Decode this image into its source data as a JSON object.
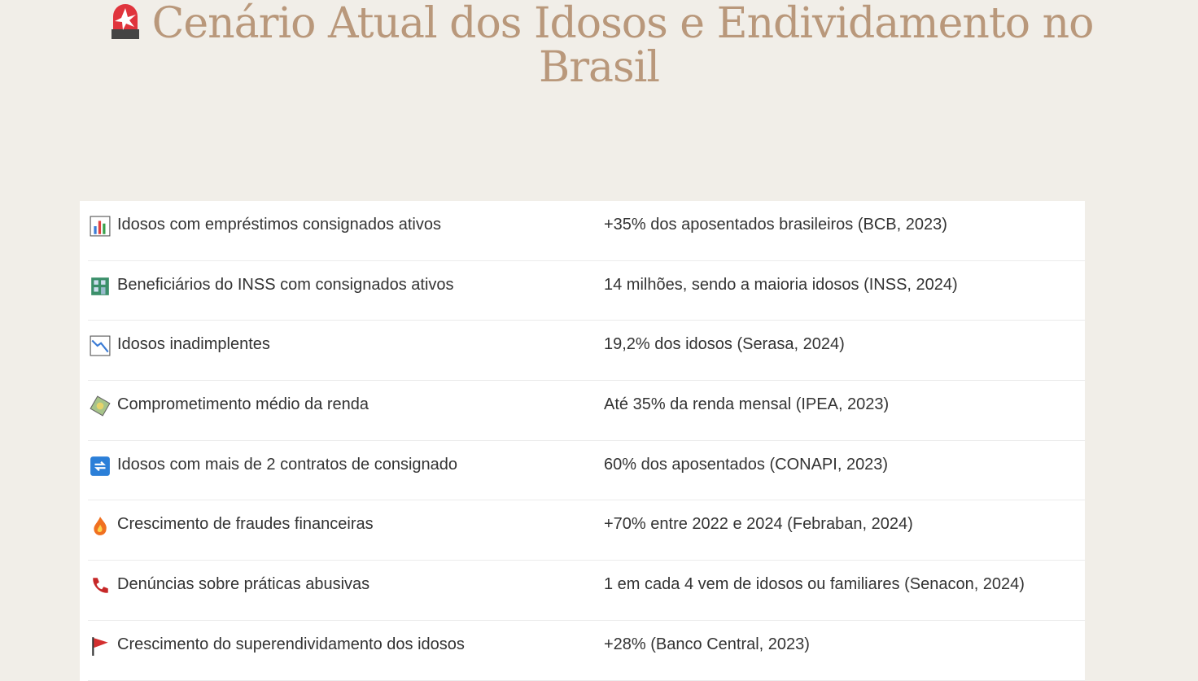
{
  "header": {
    "title": "Cenário Atual dos Idosos e Endividamento no Brasil"
  },
  "table": {
    "rows": [
      [
        "Idosos com empréstimos consignados ativos",
        "+35% dos aposentados brasileiros (BCB, 2023)"
      ],
      [
        "Beneficiários do INSS com consignados ativos",
        "14 milhões, sendo a maioria idosos (INSS, 2024)"
      ],
      [
        "Idosos inadimplentes",
        "19,2% dos idosos (Serasa, 2024)"
      ],
      [
        "Comprometimento médio da renda",
        "Até 35% da renda mensal (IPEA, 2023)"
      ],
      [
        "Idosos com mais de 2 contratos de consignado",
        "60% dos aposentados (CONAPI, 2023)"
      ],
      [
        "Crescimento de fraudes financeiras",
        "+70% entre 2022 e 2024 (Febraban, 2024)"
      ],
      [
        "Denúncias sobre práticas abusivas",
        "1 em cada 4 vem de idosos ou familiares (Senacon, 2024)"
      ],
      [
        "Crescimento do superendividamento dos idosos",
        "+28% (Banco Central, 2023)"
      ]
    ]
  }
}
